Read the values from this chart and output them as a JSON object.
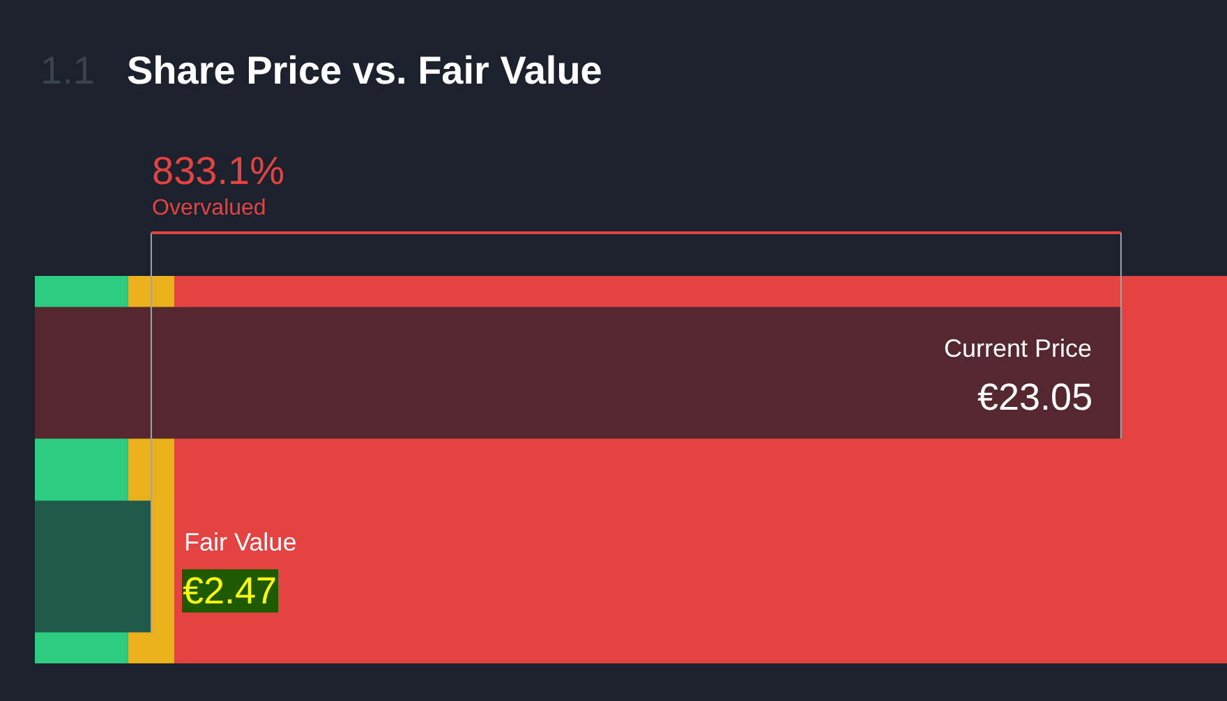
{
  "chart_data": {
    "type": "bar",
    "orientation": "horizontal",
    "title": "Share Price vs. Fair Value",
    "categories": [
      "Current Price",
      "Fair Value"
    ],
    "values": [
      23.05,
      2.47
    ],
    "colors": [
      "#55272e",
      "#215a48"
    ],
    "value_labels": [
      "€23.05",
      "€2.47"
    ],
    "xlim": [
      0,
      25.3
    ],
    "tick_labels": false,
    "bands": [
      {
        "axis": "x",
        "from": 0,
        "to": 1.98,
        "color": "#2ecc80"
      },
      {
        "axis": "x",
        "from": 1.98,
        "to": 2.96,
        "color": "#ebb11c"
      },
      {
        "axis": "x",
        "from": 2.96,
        "to": 25.3,
        "color": "#e54242"
      }
    ],
    "ref_lines": [
      {
        "axis": "x",
        "value": 2.47,
        "color": "#a0a4aa"
      }
    ],
    "annotations": [
      "1.1",
      "833.1%",
      "Overvalued"
    ]
  }
}
